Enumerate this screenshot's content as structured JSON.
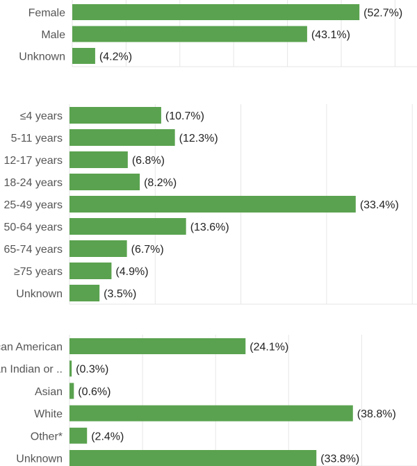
{
  "chart_data": [
    {
      "type": "bar",
      "orientation": "horizontal",
      "categories": [
        "Female",
        "Male",
        "Unknown"
      ],
      "values": [
        52.7,
        43.1,
        4.2
      ],
      "labels": [
        "(52.7%)",
        "(43.1%)",
        "(4.2%)"
      ],
      "grid": true
    },
    {
      "type": "bar",
      "orientation": "horizontal",
      "categories": [
        "≤4 years",
        "5-11 years",
        "12-17 years",
        "18-24 years",
        "25-49 years",
        "50-64 years",
        "65-74 years",
        "≥75 years",
        "Unknown"
      ],
      "values": [
        10.7,
        12.3,
        6.8,
        8.2,
        33.4,
        13.6,
        6.7,
        4.9,
        3.5
      ],
      "labels": [
        "(10.7%)",
        "(12.3%)",
        "(6.8%)",
        "(8.2%)",
        "(33.4%)",
        "(13.6%)",
        "(6.7%)",
        "(4.9%)",
        "(3.5%)"
      ],
      "grid": true
    },
    {
      "type": "bar",
      "orientation": "horizontal",
      "categories": [
        "African American",
        "American Indian or ..",
        "Asian",
        "White",
        "Other*",
        "Unknown"
      ],
      "values": [
        24.1,
        0.3,
        0.6,
        38.8,
        2.4,
        33.8
      ],
      "labels": [
        "(24.1%)",
        "(0.3%)",
        "(0.6%)",
        "(38.8%)",
        "(2.4%)",
        "(33.8%)"
      ],
      "grid": true
    }
  ],
  "colors": {
    "bar": "#5aa24f",
    "grid": "#e6e6e6"
  }
}
